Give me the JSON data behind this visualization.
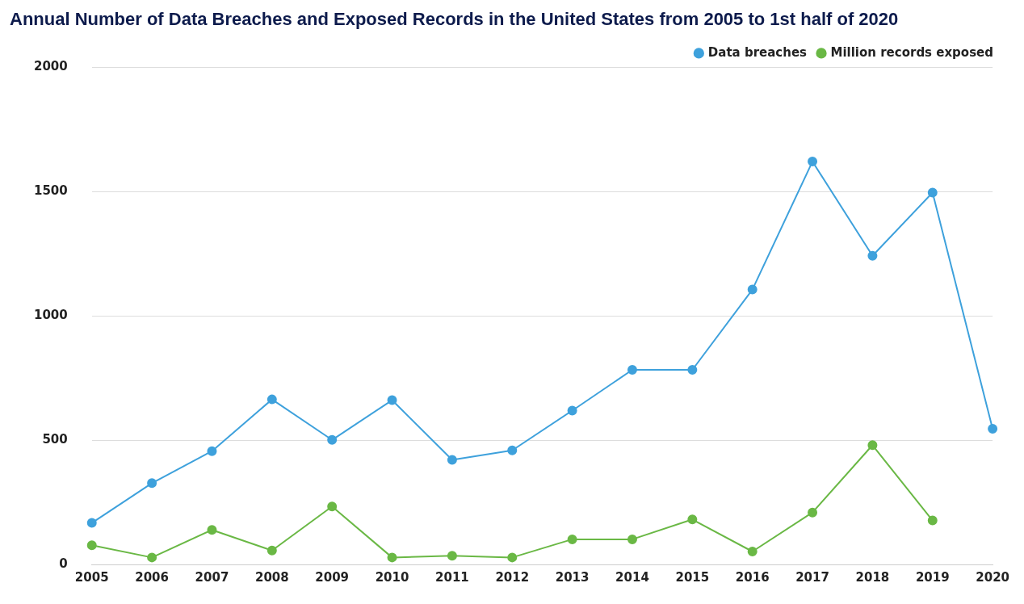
{
  "chart_data": {
    "type": "line",
    "title": "Annual Number of Data Breaches and Exposed Records in the United States from 2005 to 1st half of 2020",
    "categories": [
      "2005",
      "2006",
      "2007",
      "2008",
      "2009",
      "2010",
      "2011",
      "2012",
      "2013",
      "2014",
      "2015",
      "2016",
      "2017",
      "2018",
      "2019",
      "2020"
    ],
    "series": [
      {
        "name": "Data breaches",
        "color": "#3ea1dc",
        "values": [
          167,
          327,
          456,
          664,
          501,
          661,
          421,
          459,
          619,
          783,
          783,
          1106,
          1621,
          1242,
          1496,
          546
        ]
      },
      {
        "name": "Million records exposed",
        "color": "#6ab845",
        "values": [
          77,
          28,
          139,
          56,
          233,
          28,
          35,
          28,
          101,
          101,
          181,
          52,
          209,
          480,
          177,
          null
        ]
      }
    ],
    "ylim": [
      0,
      2000
    ],
    "yticks": [
      0,
      500,
      1000,
      1500,
      2000
    ],
    "grid": "y",
    "legend": "top right",
    "marker": "circle"
  }
}
